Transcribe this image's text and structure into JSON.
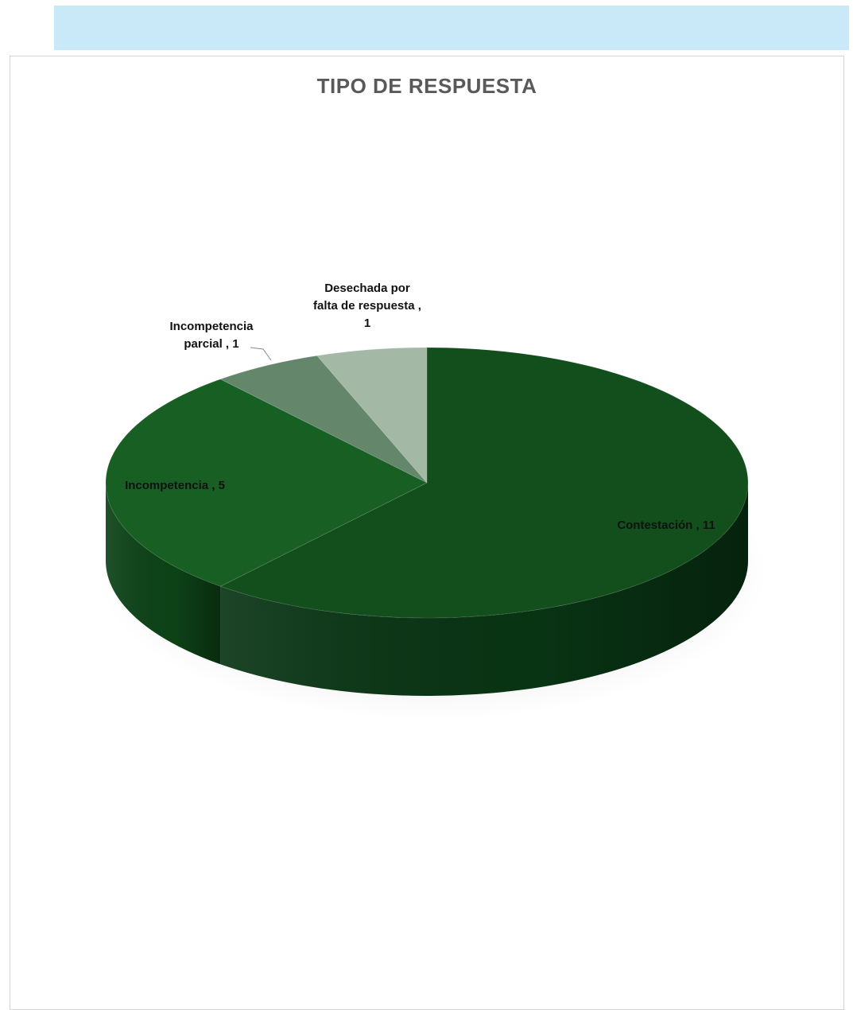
{
  "chart_data": {
    "type": "pie",
    "title": "TIPO DE RESPUESTA",
    "slices": [
      {
        "label": "Contestación",
        "value": 11,
        "color": "#124f1c",
        "side": "#093414",
        "label_lines": [
          "Contestación , 11"
        ]
      },
      {
        "label": "Incompetencia",
        "value": 5,
        "color": "#175f22",
        "side": "#0d4217",
        "label_lines": [
          "Incompetencia , 5"
        ]
      },
      {
        "label": "Incompetencia parcial",
        "value": 1,
        "color": "#64866a",
        "side": "#4a6a50",
        "label_lines": [
          "Incompetencia",
          "parcial , 1"
        ]
      },
      {
        "label": "Desechada por falta de respuesta",
        "value": 1,
        "color": "#a3b9a6",
        "side": "#7d987f",
        "label_lines": [
          "Desechada por",
          "falta de respuesta ,",
          "1"
        ]
      }
    ]
  }
}
